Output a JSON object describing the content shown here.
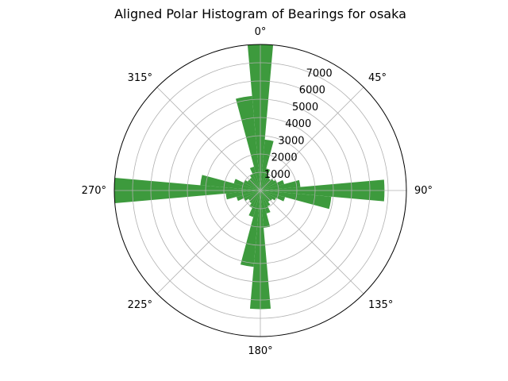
{
  "chart_data": {
    "type": "bar",
    "subtype": "polar-histogram",
    "title": "Aligned Polar Histogram of Bearings for osaka",
    "angle_tick_labels": [
      "0°",
      "45°",
      "90°",
      "135°",
      "180°",
      "225°",
      "270°",
      "315°"
    ],
    "radial_tick_labels": [
      "1000",
      "2000",
      "3000",
      "4000",
      "5000",
      "6000",
      "7000"
    ],
    "radial_ticks": [
      1000,
      2000,
      3000,
      4000,
      5000,
      6000,
      7000
    ],
    "rlim": [
      0,
      8000
    ],
    "theta_zero": "N",
    "theta_direction": "clockwise",
    "bar_color": "#3d9a3d",
    "grid": true,
    "bin_width_deg": 10,
    "bin_centers_deg": [
      0,
      10,
      20,
      30,
      40,
      50,
      60,
      70,
      80,
      90,
      100,
      110,
      120,
      130,
      140,
      150,
      160,
      170,
      180,
      190,
      200,
      210,
      220,
      230,
      240,
      250,
      260,
      270,
      280,
      290,
      300,
      310,
      320,
      330,
      340,
      350
    ],
    "values": [
      8100,
      2800,
      1250,
      900,
      800,
      900,
      1000,
      1350,
      2200,
      6800,
      3900,
      1400,
      950,
      800,
      750,
      950,
      1300,
      2050,
      6500,
      4200,
      1500,
      1050,
      850,
      800,
      1000,
      1350,
      1900,
      8200,
      3300,
      1500,
      1000,
      850,
      850,
      1000,
      1350,
      5200
    ]
  }
}
